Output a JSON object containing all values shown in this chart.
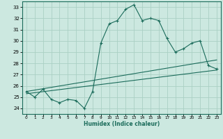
{
  "xlabel": "Humidex (Indice chaleur)",
  "ylabel": "",
  "xlim": [
    -0.5,
    23.5
  ],
  "ylim": [
    23.5,
    33.5
  ],
  "yticks": [
    24,
    25,
    26,
    27,
    28,
    29,
    30,
    31,
    32,
    33
  ],
  "xticks": [
    0,
    1,
    2,
    3,
    4,
    5,
    6,
    7,
    8,
    9,
    10,
    11,
    12,
    13,
    14,
    15,
    16,
    17,
    18,
    19,
    20,
    21,
    22,
    23
  ],
  "bg_color": "#cce8e0",
  "grid_color": "#aad0c4",
  "line_color": "#1a6b5a",
  "line1_x": [
    0,
    1,
    2,
    3,
    4,
    5,
    6,
    7,
    8,
    9,
    10,
    11,
    12,
    13,
    14,
    15,
    16,
    17,
    18,
    19,
    20,
    21,
    22,
    23
  ],
  "line1_y": [
    25.5,
    25.0,
    25.7,
    24.8,
    24.5,
    24.8,
    24.7,
    24.0,
    25.5,
    29.8,
    31.5,
    31.8,
    32.8,
    33.2,
    31.8,
    32.0,
    31.8,
    30.2,
    29.0,
    29.3,
    29.8,
    30.0,
    27.8,
    27.5
  ],
  "line2_x": [
    0,
    23
  ],
  "line2_y": [
    25.3,
    27.4
  ],
  "line3_x": [
    0,
    23
  ],
  "line3_y": [
    25.5,
    28.3
  ]
}
